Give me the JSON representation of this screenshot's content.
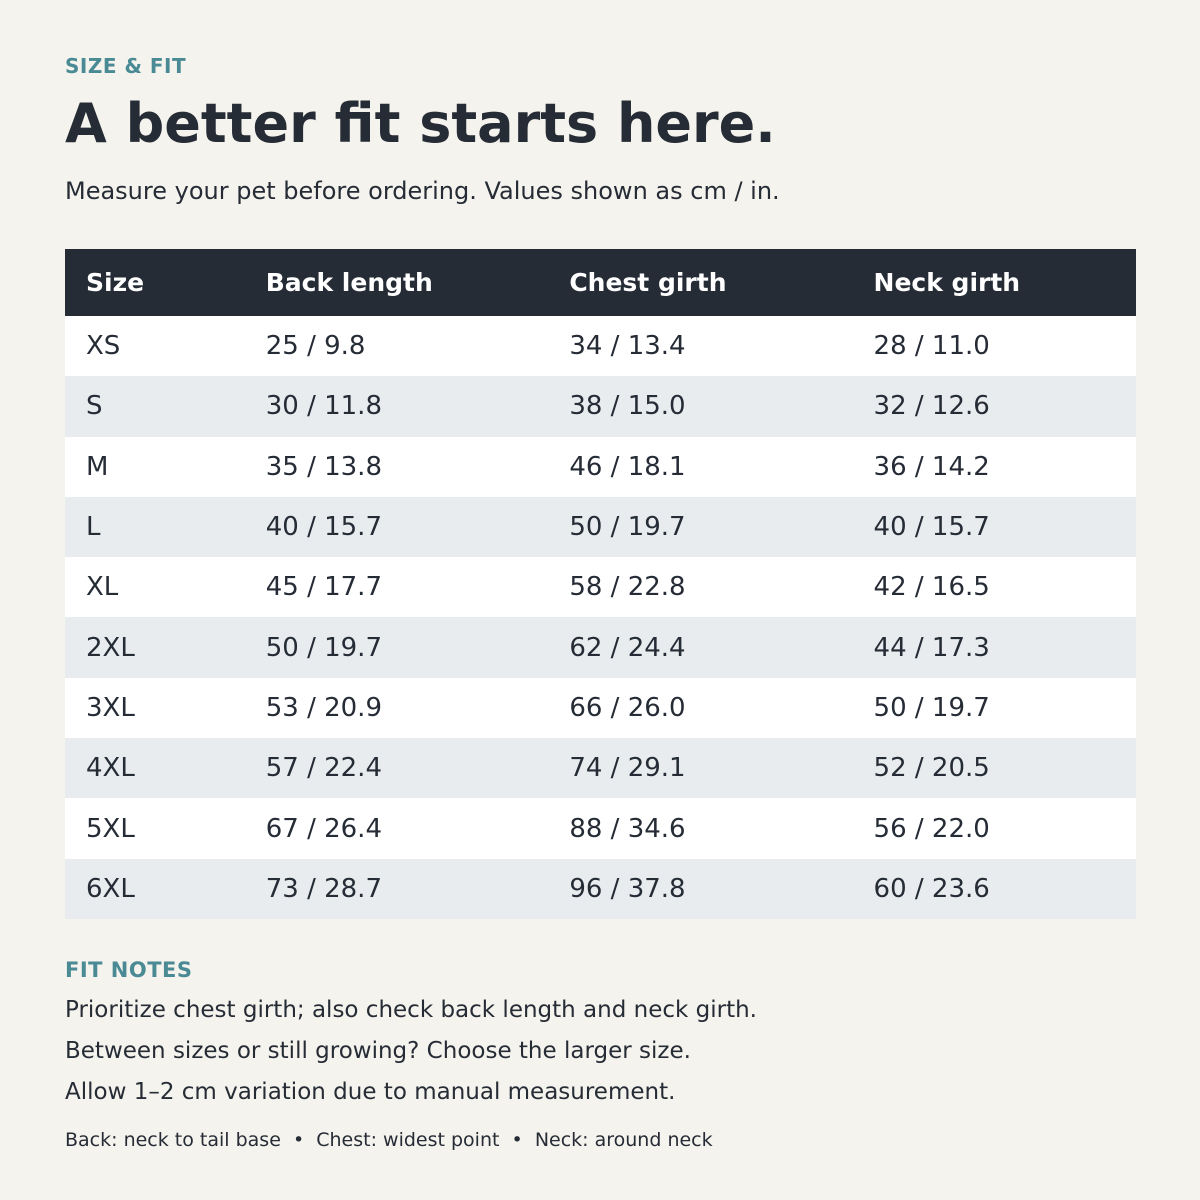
{
  "header": {
    "eyebrow": "SIZE & FIT",
    "title": "A better fit starts here.",
    "subtitle": "Measure your pet before ordering. Values shown as cm / in."
  },
  "table": {
    "columns": [
      "Size",
      "Back length",
      "Chest girth",
      "Neck girth"
    ],
    "rows": [
      [
        "XS",
        "25 / 9.8",
        "34 / 13.4",
        "28 / 11.0"
      ],
      [
        "S",
        "30 / 11.8",
        "38 / 15.0",
        "32 / 12.6"
      ],
      [
        "M",
        "35 / 13.8",
        "46 / 18.1",
        "36 / 14.2"
      ],
      [
        "L",
        "40 / 15.7",
        "50 / 19.7",
        "40 / 15.7"
      ],
      [
        "XL",
        "45 / 17.7",
        "58 / 22.8",
        "42 / 16.5"
      ],
      [
        "2XL",
        "50 / 19.7",
        "62 / 24.4",
        "44 / 17.3"
      ],
      [
        "3XL",
        "53 / 20.9",
        "66 / 26.0",
        "50 / 19.7"
      ],
      [
        "4XL",
        "57 / 22.4",
        "74 / 29.1",
        "52 / 20.5"
      ],
      [
        "5XL",
        "67 / 26.4",
        "88 / 34.6",
        "56 / 22.0"
      ],
      [
        "6XL",
        "73 / 28.7",
        "96 / 37.8",
        "60 / 23.6"
      ]
    ]
  },
  "notes": {
    "title": "FIT NOTES",
    "lines": [
      "Prioritize chest girth; also check back length and neck girth.",
      "Between sizes or still growing? Choose the larger size.",
      "Allow 1–2 cm variation due to manual measurement."
    ]
  },
  "footer": "Back: neck to tail base  •  Chest: widest point  •  Neck: around neck"
}
